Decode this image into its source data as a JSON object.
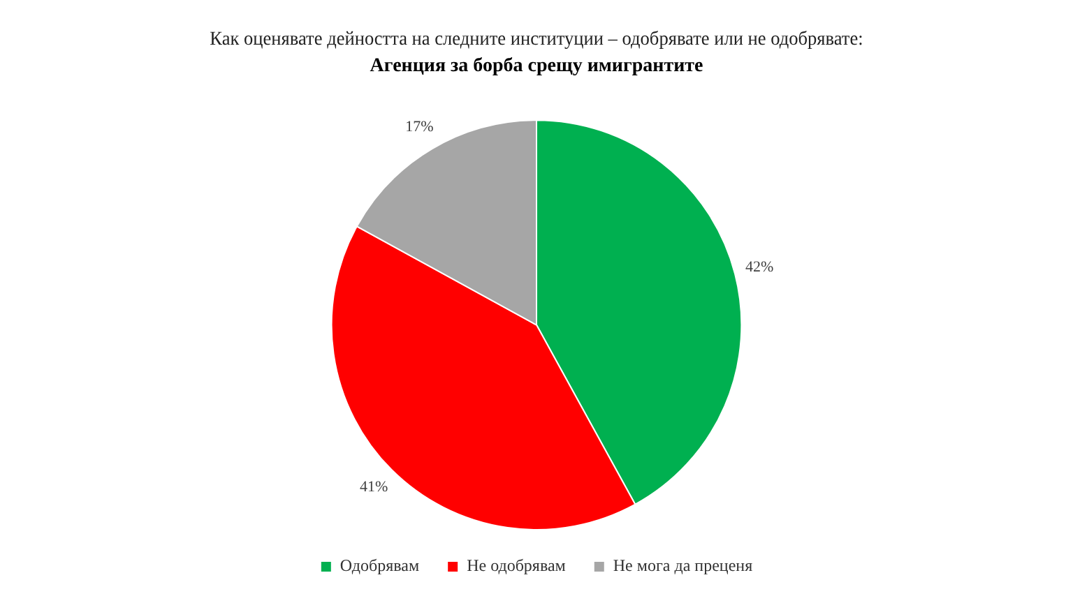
{
  "chart_data": {
    "type": "pie",
    "title": "Как оценявате дейността на следните институции – одобрявате или не одобрявате:",
    "subtitle": "Агенция за борба срещу имигрантите",
    "categories": [
      "Одобрявам",
      "Не одобрявам",
      "Не мога да преценя"
    ],
    "values": [
      42,
      41,
      17
    ],
    "colors": [
      "#00b050",
      "#ff0000",
      "#a6a6a6"
    ],
    "value_labels": [
      "42%",
      "41%",
      "17%"
    ],
    "legend": "bottom"
  }
}
